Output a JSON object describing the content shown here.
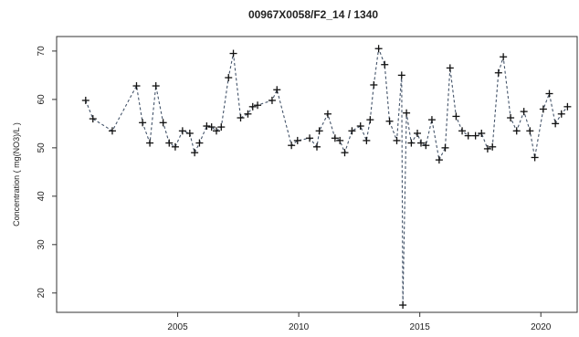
{
  "chart_data": {
    "type": "line",
    "title": "00967X0058/F2_14 / 1340",
    "xlabel": "",
    "ylabel": "Concentration ( mg(NO3)/L )",
    "xlim": [
      2000.0,
      2021.5
    ],
    "ylim": [
      16,
      73
    ],
    "x_ticks": [
      2005,
      2010,
      2015,
      2020
    ],
    "y_ticks": [
      20,
      30,
      40,
      50,
      60,
      70
    ],
    "grid": false,
    "marker": "+",
    "line_style": "dashed",
    "line_color": "#44546a",
    "series": [
      {
        "x": [
          2001.2,
          2001.5,
          2002.3,
          2003.3,
          2003.55,
          2003.85,
          2004.1,
          2004.4,
          2004.65,
          2004.9,
          2005.2,
          2005.5,
          2005.7,
          2005.9,
          2006.2,
          2006.4,
          2006.6,
          2006.8,
          2007.1,
          2007.3,
          2007.6,
          2007.9,
          2008.1,
          2008.3,
          2008.9,
          2009.1,
          2009.7,
          2009.95,
          2010.45,
          2010.75,
          2010.85,
          2011.2,
          2011.5,
          2011.7,
          2011.9,
          2012.2,
          2012.55,
          2012.8,
          2012.95,
          2013.1,
          2013.3,
          2013.55,
          2013.75,
          2014.05,
          2014.25,
          2014.3,
          2014.45,
          2014.65,
          2014.9,
          2015.05,
          2015.25,
          2015.5,
          2015.8,
          2016.05,
          2016.25,
          2016.5,
          2016.75,
          2017.0,
          2017.3,
          2017.55,
          2017.8,
          2018.0,
          2018.25,
          2018.45,
          2018.75,
          2019.0,
          2019.3,
          2019.55,
          2019.75,
          2020.1,
          2020.35,
          2020.6,
          2020.85,
          2021.1
        ],
        "y": [
          59.8,
          56.0,
          53.5,
          62.8,
          55.2,
          51.0,
          62.8,
          55.2,
          51.0,
          50.2,
          53.5,
          53.0,
          49.0,
          51.0,
          54.5,
          54.3,
          53.5,
          54.3,
          64.5,
          69.5,
          56.2,
          57.0,
          58.5,
          58.8,
          59.8,
          62.0,
          50.5,
          51.5,
          52.0,
          50.2,
          53.5,
          57.0,
          52.0,
          51.5,
          49.0,
          53.5,
          54.5,
          51.5,
          55.8,
          63.0,
          70.5,
          67.2,
          55.5,
          51.5,
          65.0,
          17.5,
          57.2,
          51.0,
          53.0,
          51.0,
          50.5,
          55.8,
          47.5,
          50.0,
          66.5,
          56.5,
          53.5,
          52.5,
          52.5,
          53.0,
          49.8,
          50.2,
          65.5,
          68.8,
          56.2,
          53.5,
          57.5,
          53.5,
          48.0,
          58.0,
          61.2,
          55.0,
          57.0,
          58.5
        ]
      }
    ]
  }
}
